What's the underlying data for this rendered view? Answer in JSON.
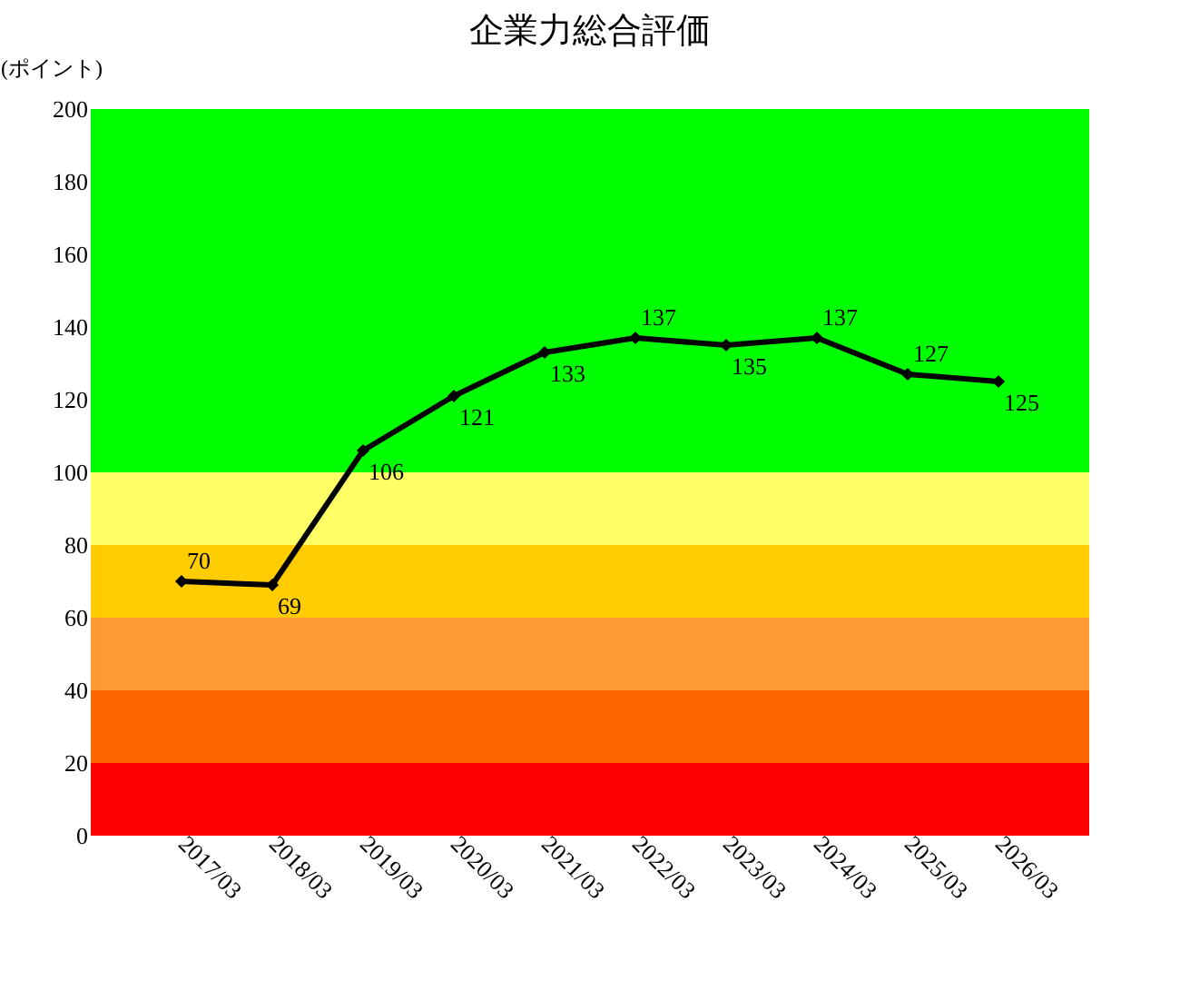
{
  "chart_data": {
    "type": "line",
    "title": "企業力総合評価",
    "ylabel": "(ポイント)",
    "categories": [
      "2017/03",
      "2018/03",
      "2019/03",
      "2020/03",
      "2021/03",
      "2022/03",
      "2023/03",
      "2024/03",
      "2025/03",
      "2026/03"
    ],
    "series": [
      {
        "color": "#000000",
        "values": [
          70,
          69,
          106,
          121,
          133,
          137,
          135,
          137,
          127,
          125
        ]
      }
    ],
    "ylim": [
      0,
      200
    ],
    "yticks": [
      0,
      20,
      40,
      60,
      80,
      100,
      120,
      140,
      160,
      180,
      200
    ],
    "bands": [
      {
        "axis": "y",
        "from": 0,
        "to": 20,
        "color": "#ff0000"
      },
      {
        "axis": "y",
        "from": 20,
        "to": 40,
        "color": "#ff6600"
      },
      {
        "axis": "y",
        "from": 40,
        "to": 60,
        "color": "#ff9933"
      },
      {
        "axis": "y",
        "from": 60,
        "to": 80,
        "color": "#ffcc00"
      },
      {
        "axis": "y",
        "from": 80,
        "to": 100,
        "color": "#ffff66"
      },
      {
        "axis": "y",
        "from": 100,
        "to": 200,
        "color": "#00ff00"
      }
    ],
    "data_labels": true,
    "marker": "diamond",
    "grid": false,
    "line_style": "solid"
  }
}
